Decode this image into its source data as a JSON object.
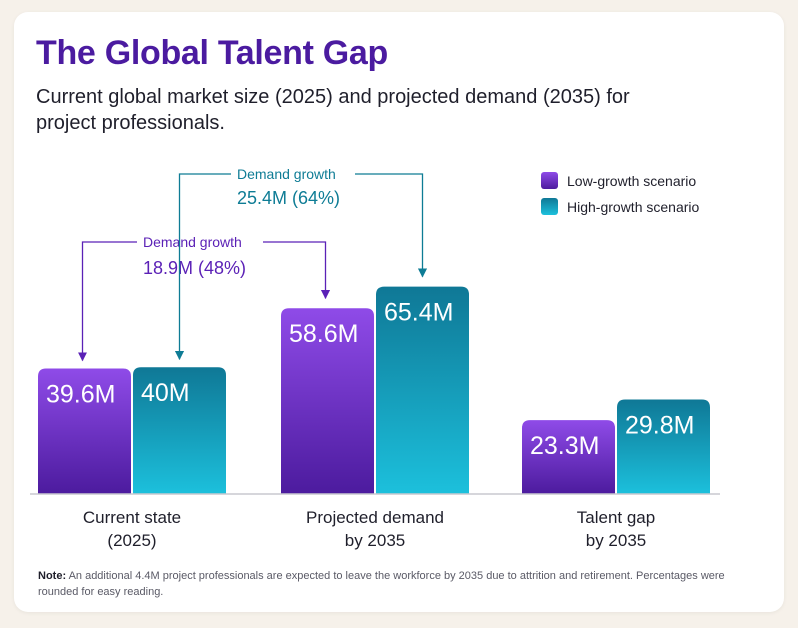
{
  "title": "The Global Talent Gap",
  "subtitle": "Current global market size (2025) and projected demand (2035) for project professionals.",
  "note_label": "Note:",
  "note_text": "An additional 4.4M project professionals are expected to leave the workforce by 2035 due to attrition and retirement. Percentages were rounded for easy reading.",
  "colors": {
    "low_top": "#8f4be8",
    "low_bottom": "#4c1b9e",
    "high_top": "#0f7896",
    "high_bottom": "#1cc0dc",
    "low_annotation": "#5b21b6",
    "high_annotation": "#0e7c95"
  },
  "chart_data": {
    "type": "bar",
    "categories": [
      "Current state (2025)",
      "Projected demand by 2035",
      "Talent gap by 2035"
    ],
    "category_lines": [
      [
        "Current state",
        "(2025)"
      ],
      [
        "Projected demand",
        "by 2035"
      ],
      [
        "Talent gap",
        "by 2035"
      ]
    ],
    "series": [
      {
        "name": "Low-growth scenario",
        "values": [
          39.6,
          58.6,
          23.3
        ],
        "labels": [
          "39.6M",
          "58.6M",
          "23.3M"
        ]
      },
      {
        "name": "High-growth scenario",
        "values": [
          40,
          65.4,
          29.8
        ],
        "labels": [
          "40M",
          "65.4M",
          "29.8M"
        ]
      }
    ],
    "legend_position": "top-right",
    "grid": false,
    "annotations": [
      {
        "label": "Demand growth",
        "value": "18.9M (48%)",
        "series": "Low-growth scenario",
        "from": "Current state (2025)",
        "to": "Projected demand by 2035"
      },
      {
        "label": "Demand growth",
        "value": "25.4M (64%)",
        "series": "High-growth scenario",
        "from": "Current state (2025)",
        "to": "Projected demand by 2035"
      }
    ]
  }
}
